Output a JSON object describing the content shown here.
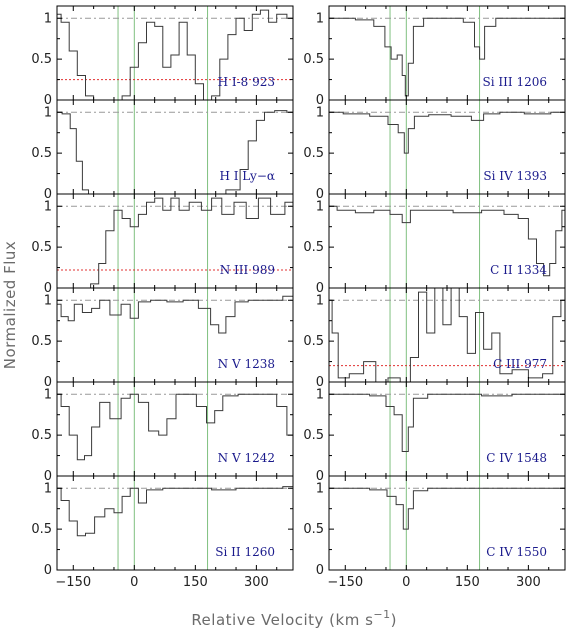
{
  "figure": {
    "ylabel": "Normalized Flux",
    "xlabel": "Relative Velocity (km s",
    "xlabel_unit_sup": "−1",
    "xlabel_close": ")"
  },
  "chart_data": {
    "type": "line",
    "xlim": [
      -190,
      390
    ],
    "ylim": [
      0,
      1.15
    ],
    "x_ticks": [
      -150,
      0,
      150,
      300
    ],
    "y_ticks": [
      0,
      0.5,
      1
    ],
    "y_tick_labels": [
      "0",
      "0.5",
      "1"
    ],
    "reference_velocities": [
      -40,
      0,
      180
    ],
    "continuum_level": 1,
    "colors": {
      "data": "#3a3a3a",
      "continuum": "#999999",
      "error": "#e03030",
      "reference": "#80c080",
      "label": "#1a1a8c"
    },
    "panels": [
      {
        "col": 0,
        "row": 0,
        "label": "H I-8 923",
        "error_level": 0.25,
        "segments": [
          {
            "x": -190,
            "y": 1.05
          },
          {
            "x": -170,
            "y": 0.95
          },
          {
            "x": -150,
            "y": 0.6
          },
          {
            "x": -130,
            "y": 0.3
          },
          {
            "x": -110,
            "y": 0.05
          },
          {
            "x": -90,
            "y": 0.0
          },
          {
            "x": -60,
            "y": 0.0
          },
          {
            "x": -40,
            "y": 0.0
          },
          {
            "x": -20,
            "y": 0.05
          },
          {
            "x": 0,
            "y": 0.4
          },
          {
            "x": 20,
            "y": 0.7
          },
          {
            "x": 40,
            "y": 0.95
          },
          {
            "x": 60,
            "y": 0.9
          },
          {
            "x": 80,
            "y": 0.4
          },
          {
            "x": 100,
            "y": 0.55
          },
          {
            "x": 120,
            "y": 0.95
          },
          {
            "x": 140,
            "y": 0.55
          },
          {
            "x": 160,
            "y": 0.2
          },
          {
            "x": 180,
            "y": 0.0
          },
          {
            "x": 200,
            "y": 0.05
          },
          {
            "x": 220,
            "y": 0.5
          },
          {
            "x": 240,
            "y": 0.8
          },
          {
            "x": 260,
            "y": 1.0
          },
          {
            "x": 280,
            "y": 0.85
          },
          {
            "x": 300,
            "y": 1.05
          },
          {
            "x": 320,
            "y": 1.1
          },
          {
            "x": 340,
            "y": 0.95
          },
          {
            "x": 360,
            "y": 1.05
          },
          {
            "x": 390,
            "y": 1.0
          }
        ]
      },
      {
        "col": 0,
        "row": 1,
        "label": "H I Ly−α",
        "error_level": null,
        "segments": [
          {
            "x": -190,
            "y": 1.0
          },
          {
            "x": -165,
            "y": 0.98
          },
          {
            "x": -150,
            "y": 0.8
          },
          {
            "x": -135,
            "y": 0.4
          },
          {
            "x": -120,
            "y": 0.05
          },
          {
            "x": -105,
            "y": 0.0
          },
          {
            "x": 0,
            "y": 0.0
          },
          {
            "x": 100,
            "y": 0.0
          },
          {
            "x": 200,
            "y": 0.0
          },
          {
            "x": 250,
            "y": 0.05
          },
          {
            "x": 270,
            "y": 0.3
          },
          {
            "x": 290,
            "y": 0.65
          },
          {
            "x": 310,
            "y": 0.9
          },
          {
            "x": 330,
            "y": 1.0
          },
          {
            "x": 360,
            "y": 1.02
          },
          {
            "x": 390,
            "y": 1.0
          }
        ]
      },
      {
        "col": 0,
        "row": 2,
        "label": "N III 989",
        "error_level": 0.22,
        "segments": [
          {
            "x": -190,
            "y": 0.0
          },
          {
            "x": -120,
            "y": 0.0
          },
          {
            "x": -95,
            "y": 0.05
          },
          {
            "x": -80,
            "y": 0.3
          },
          {
            "x": -60,
            "y": 0.7
          },
          {
            "x": -40,
            "y": 0.95
          },
          {
            "x": -20,
            "y": 0.85
          },
          {
            "x": 0,
            "y": 0.75
          },
          {
            "x": 20,
            "y": 0.9
          },
          {
            "x": 40,
            "y": 1.05
          },
          {
            "x": 60,
            "y": 1.1
          },
          {
            "x": 80,
            "y": 0.95
          },
          {
            "x": 100,
            "y": 1.1
          },
          {
            "x": 120,
            "y": 0.95
          },
          {
            "x": 150,
            "y": 1.05
          },
          {
            "x": 180,
            "y": 0.95
          },
          {
            "x": 200,
            "y": 1.1
          },
          {
            "x": 230,
            "y": 0.9
          },
          {
            "x": 260,
            "y": 1.05
          },
          {
            "x": 290,
            "y": 0.85
          },
          {
            "x": 320,
            "y": 1.1
          },
          {
            "x": 350,
            "y": 0.9
          },
          {
            "x": 390,
            "y": 1.05
          }
        ]
      },
      {
        "col": 0,
        "row": 3,
        "label": "N V 1238",
        "error_level": null,
        "segments": [
          {
            "x": -190,
            "y": 0.95
          },
          {
            "x": -170,
            "y": 0.8
          },
          {
            "x": -155,
            "y": 0.75
          },
          {
            "x": -140,
            "y": 0.95
          },
          {
            "x": -115,
            "y": 0.85
          },
          {
            "x": -95,
            "y": 0.9
          },
          {
            "x": -75,
            "y": 1.0
          },
          {
            "x": -45,
            "y": 0.82
          },
          {
            "x": -20,
            "y": 0.95
          },
          {
            "x": 0,
            "y": 0.78
          },
          {
            "x": 20,
            "y": 0.98
          },
          {
            "x": 60,
            "y": 1.0
          },
          {
            "x": 100,
            "y": 0.98
          },
          {
            "x": 140,
            "y": 1.0
          },
          {
            "x": 175,
            "y": 0.9
          },
          {
            "x": 200,
            "y": 0.7
          },
          {
            "x": 215,
            "y": 0.6
          },
          {
            "x": 235,
            "y": 0.8
          },
          {
            "x": 260,
            "y": 0.98
          },
          {
            "x": 300,
            "y": 1.0
          },
          {
            "x": 340,
            "y": 1.0
          },
          {
            "x": 390,
            "y": 1.05
          }
        ]
      },
      {
        "col": 0,
        "row": 4,
        "label": "N V 1242",
        "error_level": null,
        "segments": [
          {
            "x": -190,
            "y": 1.0
          },
          {
            "x": -170,
            "y": 0.85
          },
          {
            "x": -150,
            "y": 0.5
          },
          {
            "x": -130,
            "y": 0.2
          },
          {
            "x": -115,
            "y": 0.25
          },
          {
            "x": -95,
            "y": 0.6
          },
          {
            "x": -75,
            "y": 0.9
          },
          {
            "x": -45,
            "y": 0.7
          },
          {
            "x": -20,
            "y": 0.95
          },
          {
            "x": 0,
            "y": 1.0
          },
          {
            "x": 20,
            "y": 0.9
          },
          {
            "x": 50,
            "y": 0.55
          },
          {
            "x": 70,
            "y": 0.5
          },
          {
            "x": 90,
            "y": 0.7
          },
          {
            "x": 115,
            "y": 1.0
          },
          {
            "x": 140,
            "y": 1.0
          },
          {
            "x": 165,
            "y": 0.85
          },
          {
            "x": 190,
            "y": 0.65
          },
          {
            "x": 205,
            "y": 0.8
          },
          {
            "x": 230,
            "y": 0.98
          },
          {
            "x": 280,
            "y": 1.0
          },
          {
            "x": 340,
            "y": 1.0
          },
          {
            "x": 360,
            "y": 0.85
          },
          {
            "x": 390,
            "y": 0.5
          }
        ]
      },
      {
        "col": 0,
        "row": 5,
        "label": "Si II 1260",
        "error_level": null,
        "segments": [
          {
            "x": -190,
            "y": 1.0
          },
          {
            "x": -170,
            "y": 0.85
          },
          {
            "x": -150,
            "y": 0.6
          },
          {
            "x": -130,
            "y": 0.42
          },
          {
            "x": -110,
            "y": 0.45
          },
          {
            "x": -85,
            "y": 0.65
          },
          {
            "x": -60,
            "y": 0.75
          },
          {
            "x": -40,
            "y": 0.7
          },
          {
            "x": -20,
            "y": 0.9
          },
          {
            "x": 0,
            "y": 1.0
          },
          {
            "x": 20,
            "y": 0.82
          },
          {
            "x": 40,
            "y": 0.98
          },
          {
            "x": 100,
            "y": 1.0
          },
          {
            "x": 160,
            "y": 1.0
          },
          {
            "x": 220,
            "y": 0.98
          },
          {
            "x": 280,
            "y": 1.0
          },
          {
            "x": 340,
            "y": 1.0
          },
          {
            "x": 390,
            "y": 1.02
          }
        ]
      },
      {
        "col": 1,
        "row": 0,
        "label": "Si III 1206",
        "error_level": null,
        "segments": [
          {
            "x": -190,
            "y": 1.0
          },
          {
            "x": -150,
            "y": 1.0
          },
          {
            "x": -100,
            "y": 0.98
          },
          {
            "x": -60,
            "y": 0.9
          },
          {
            "x": -45,
            "y": 0.65
          },
          {
            "x": -30,
            "y": 0.5
          },
          {
            "x": -15,
            "y": 0.55
          },
          {
            "x": -5,
            "y": 0.3
          },
          {
            "x": 0,
            "y": 0.05
          },
          {
            "x": 10,
            "y": 0.45
          },
          {
            "x": 25,
            "y": 0.9
          },
          {
            "x": 60,
            "y": 1.0
          },
          {
            "x": 120,
            "y": 1.0
          },
          {
            "x": 160,
            "y": 0.95
          },
          {
            "x": 175,
            "y": 0.65
          },
          {
            "x": 185,
            "y": 0.5
          },
          {
            "x": 200,
            "y": 0.9
          },
          {
            "x": 240,
            "y": 1.0
          },
          {
            "x": 300,
            "y": 1.0
          },
          {
            "x": 350,
            "y": 1.0
          },
          {
            "x": 390,
            "y": 1.0
          }
        ]
      },
      {
        "col": 1,
        "row": 1,
        "label": "Si IV 1393",
        "error_level": null,
        "segments": [
          {
            "x": -190,
            "y": 1.0
          },
          {
            "x": -120,
            "y": 0.98
          },
          {
            "x": -60,
            "y": 0.95
          },
          {
            "x": -30,
            "y": 0.85
          },
          {
            "x": -10,
            "y": 0.75
          },
          {
            "x": 0,
            "y": 0.5
          },
          {
            "x": 10,
            "y": 0.8
          },
          {
            "x": 30,
            "y": 0.95
          },
          {
            "x": 80,
            "y": 0.97
          },
          {
            "x": 140,
            "y": 0.95
          },
          {
            "x": 180,
            "y": 0.9
          },
          {
            "x": 200,
            "y": 0.98
          },
          {
            "x": 260,
            "y": 1.0
          },
          {
            "x": 320,
            "y": 0.98
          },
          {
            "x": 390,
            "y": 1.0
          }
        ]
      },
      {
        "col": 1,
        "row": 2,
        "label": "C II 1334",
        "error_level": null,
        "segments": [
          {
            "x": -190,
            "y": 1.0
          },
          {
            "x": -150,
            "y": 0.95
          },
          {
            "x": -100,
            "y": 0.92
          },
          {
            "x": -60,
            "y": 0.95
          },
          {
            "x": -20,
            "y": 0.9
          },
          {
            "x": 0,
            "y": 0.8
          },
          {
            "x": 20,
            "y": 0.95
          },
          {
            "x": 80,
            "y": 0.95
          },
          {
            "x": 150,
            "y": 0.92
          },
          {
            "x": 220,
            "y": 0.95
          },
          {
            "x": 260,
            "y": 0.9
          },
          {
            "x": 290,
            "y": 0.85
          },
          {
            "x": 310,
            "y": 0.6
          },
          {
            "x": 330,
            "y": 0.3
          },
          {
            "x": 345,
            "y": 0.15
          },
          {
            "x": 360,
            "y": 0.3
          },
          {
            "x": 375,
            "y": 0.7
          },
          {
            "x": 390,
            "y": 0.95
          }
        ]
      },
      {
        "col": 1,
        "row": 3,
        "label": "C III 977",
        "error_level": 0.2,
        "segments": [
          {
            "x": -190,
            "y": 1.0
          },
          {
            "x": -175,
            "y": 0.6
          },
          {
            "x": -160,
            "y": 0.05
          },
          {
            "x": -120,
            "y": 0.1
          },
          {
            "x": -90,
            "y": 0.25
          },
          {
            "x": -60,
            "y": 0.0
          },
          {
            "x": -30,
            "y": 0.05
          },
          {
            "x": 0,
            "y": 0.0
          },
          {
            "x": 20,
            "y": 0.3
          },
          {
            "x": 40,
            "y": 1.1
          },
          {
            "x": 60,
            "y": 0.6
          },
          {
            "x": 80,
            "y": 1.15
          },
          {
            "x": 100,
            "y": 0.7
          },
          {
            "x": 120,
            "y": 1.15
          },
          {
            "x": 140,
            "y": 0.8
          },
          {
            "x": 160,
            "y": 0.35
          },
          {
            "x": 180,
            "y": 0.85
          },
          {
            "x": 200,
            "y": 0.4
          },
          {
            "x": 220,
            "y": 0.6
          },
          {
            "x": 240,
            "y": 0.1
          },
          {
            "x": 280,
            "y": 0.15
          },
          {
            "x": 320,
            "y": 0.05
          },
          {
            "x": 350,
            "y": 0.1
          },
          {
            "x": 370,
            "y": 0.8
          },
          {
            "x": 390,
            "y": 1.0
          }
        ]
      },
      {
        "col": 1,
        "row": 4,
        "label": "C IV 1548",
        "error_level": null,
        "segments": [
          {
            "x": -190,
            "y": 1.0
          },
          {
            "x": -120,
            "y": 1.0
          },
          {
            "x": -60,
            "y": 0.98
          },
          {
            "x": -40,
            "y": 0.85
          },
          {
            "x": -20,
            "y": 0.75
          },
          {
            "x": 0,
            "y": 0.3
          },
          {
            "x": 10,
            "y": 0.6
          },
          {
            "x": 25,
            "y": 0.95
          },
          {
            "x": 80,
            "y": 1.0
          },
          {
            "x": 150,
            "y": 1.0
          },
          {
            "x": 220,
            "y": 0.98
          },
          {
            "x": 300,
            "y": 1.0
          },
          {
            "x": 390,
            "y": 1.0
          }
        ]
      },
      {
        "col": 1,
        "row": 5,
        "label": "C IV 1550",
        "error_level": null,
        "segments": [
          {
            "x": -190,
            "y": 1.0
          },
          {
            "x": -120,
            "y": 1.0
          },
          {
            "x": -60,
            "y": 0.98
          },
          {
            "x": -35,
            "y": 0.9
          },
          {
            "x": -15,
            "y": 0.8
          },
          {
            "x": 0,
            "y": 0.5
          },
          {
            "x": 10,
            "y": 0.75
          },
          {
            "x": 25,
            "y": 0.97
          },
          {
            "x": 80,
            "y": 1.0
          },
          {
            "x": 150,
            "y": 1.0
          },
          {
            "x": 220,
            "y": 1.0
          },
          {
            "x": 300,
            "y": 1.0
          },
          {
            "x": 390,
            "y": 1.0
          }
        ]
      }
    ]
  }
}
